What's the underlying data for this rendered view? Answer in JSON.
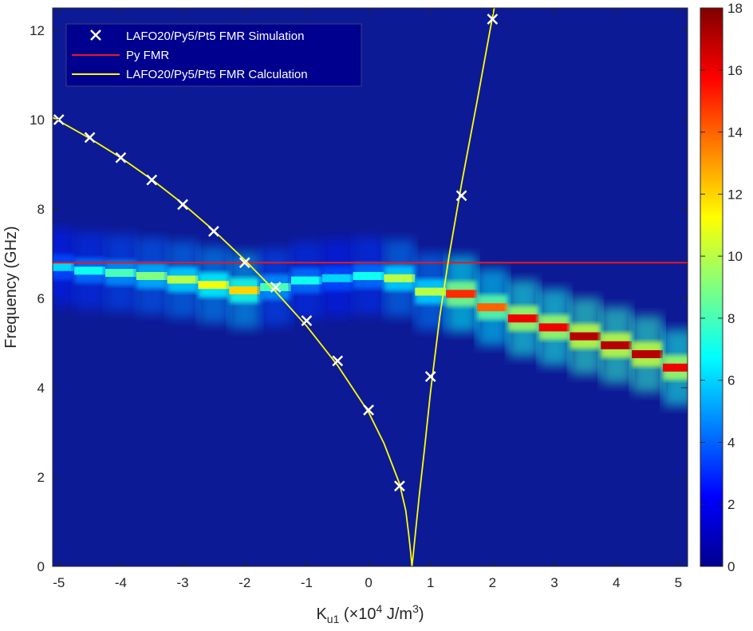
{
  "chart_data": {
    "type": "heatmap",
    "xlabel": {
      "base": "K",
      "sub": "u1",
      "pre": " (",
      "times": "×",
      "ten": "10",
      "exp": "4",
      "unit": " J/m",
      "unit_exp": "3",
      "post": ")"
    },
    "ylabel": "Frequency (GHz)",
    "xlim": [
      -5.1,
      5.15
    ],
    "ylim": [
      0,
      12.5
    ],
    "xticks": [
      -5,
      -4,
      -3,
      -2,
      -1,
      0,
      1,
      2,
      3,
      4,
      5
    ],
    "xtick_labels": [
      "-5",
      "-4",
      "-3",
      "-2",
      "-1",
      "0",
      "1",
      "2",
      "3",
      "4",
      "5"
    ],
    "yticks": [
      0,
      2,
      4,
      6,
      8,
      10,
      12
    ],
    "ytick_labels": [
      "0",
      "2",
      "4",
      "6",
      "8",
      "10",
      "12"
    ],
    "colorbar": {
      "range": [
        0,
        18
      ],
      "ticks": [
        0,
        2,
        4,
        6,
        8,
        10,
        12,
        14,
        16,
        18
      ],
      "tick_labels": [
        "0",
        "2",
        "4",
        "6",
        "8",
        "10",
        "12",
        "14",
        "16",
        "18"
      ],
      "colormap": "jet"
    },
    "heatmap_bands": [
      {
        "k": -5.0,
        "freq": 6.7,
        "intensity": 6
      },
      {
        "k": -4.5,
        "freq": 6.62,
        "intensity": 7
      },
      {
        "k": -4.0,
        "freq": 6.57,
        "intensity": 8
      },
      {
        "k": -3.5,
        "freq": 6.5,
        "intensity": 9
      },
      {
        "k": -3.0,
        "freq": 6.42,
        "intensity": 10
      },
      {
        "k": -2.5,
        "freq": 6.3,
        "intensity": 11
      },
      {
        "k": -2.0,
        "freq": 6.18,
        "intensity": 12
      },
      {
        "k": -1.5,
        "freq": 6.25,
        "intensity": 8
      },
      {
        "k": -1.0,
        "freq": 6.4,
        "intensity": 7
      },
      {
        "k": -0.5,
        "freq": 6.45,
        "intensity": 6
      },
      {
        "k": 0.0,
        "freq": 6.5,
        "intensity": 7
      },
      {
        "k": 0.5,
        "freq": 6.45,
        "intensity": 10
      },
      {
        "k": 1.0,
        "freq": 6.15,
        "intensity": 10
      },
      {
        "k": 1.5,
        "freq": 6.1,
        "intensity": 15
      },
      {
        "k": 2.0,
        "freq": 5.8,
        "intensity": 14
      },
      {
        "k": 2.5,
        "freq": 5.55,
        "intensity": 16
      },
      {
        "k": 3.0,
        "freq": 5.35,
        "intensity": 16
      },
      {
        "k": 3.5,
        "freq": 5.15,
        "intensity": 17
      },
      {
        "k": 4.0,
        "freq": 4.95,
        "intensity": 17
      },
      {
        "k": 4.5,
        "freq": 4.75,
        "intensity": 17
      },
      {
        "k": 5.0,
        "freq": 4.45,
        "intensity": 16
      }
    ],
    "series": [
      {
        "name": "LAFO20/Py5/Pt5 FMR Simulation",
        "marker": "x",
        "color": "#ffffff",
        "points": [
          {
            "x": -5.0,
            "y": 10.0
          },
          {
            "x": -4.5,
            "y": 9.6
          },
          {
            "x": -4.0,
            "y": 9.15
          },
          {
            "x": -3.5,
            "y": 8.65
          },
          {
            "x": -3.0,
            "y": 8.1
          },
          {
            "x": -2.5,
            "y": 7.5
          },
          {
            "x": -2.0,
            "y": 6.8
          },
          {
            "x": -1.5,
            "y": 6.25
          },
          {
            "x": -1.0,
            "y": 5.5
          },
          {
            "x": -0.5,
            "y": 4.6
          },
          {
            "x": 0.0,
            "y": 3.5
          },
          {
            "x": 0.5,
            "y": 1.8
          },
          {
            "x": 1.0,
            "y": 4.25
          },
          {
            "x": 1.5,
            "y": 8.3
          },
          {
            "x": 2.0,
            "y": 12.25
          }
        ]
      },
      {
        "name": "Py FMR",
        "line": true,
        "color": "#e8191c",
        "points": [
          {
            "x": -5.1,
            "y": 6.8
          },
          {
            "x": 5.15,
            "y": 6.8
          }
        ]
      },
      {
        "name": "LAFO20/Py5/Pt5 FMR Calculation",
        "line": true,
        "color": "#ffff00",
        "points": [
          {
            "x": -5.1,
            "y": 10.05
          },
          {
            "x": -4.5,
            "y": 9.58
          },
          {
            "x": -4.0,
            "y": 9.15
          },
          {
            "x": -3.5,
            "y": 8.66
          },
          {
            "x": -3.0,
            "y": 8.12
          },
          {
            "x": -2.5,
            "y": 7.52
          },
          {
            "x": -2.0,
            "y": 6.86
          },
          {
            "x": -1.5,
            "y": 6.15
          },
          {
            "x": -1.0,
            "y": 5.38
          },
          {
            "x": -0.5,
            "y": 4.5
          },
          {
            "x": 0.0,
            "y": 3.45
          },
          {
            "x": 0.25,
            "y": 2.75
          },
          {
            "x": 0.5,
            "y": 1.85
          },
          {
            "x": 0.6,
            "y": 1.25
          },
          {
            "x": 0.65,
            "y": 0.7
          },
          {
            "x": 0.68,
            "y": 0.3
          },
          {
            "x": 0.7,
            "y": 0.0
          },
          {
            "x": 0.72,
            "y": 0.25
          },
          {
            "x": 0.76,
            "y": 0.8
          },
          {
            "x": 0.82,
            "y": 1.6
          },
          {
            "x": 0.9,
            "y": 2.6
          },
          {
            "x": 1.0,
            "y": 3.9
          },
          {
            "x": 1.15,
            "y": 5.6
          },
          {
            "x": 1.3,
            "y": 6.95
          },
          {
            "x": 1.5,
            "y": 8.55
          },
          {
            "x": 1.75,
            "y": 10.4
          },
          {
            "x": 2.0,
            "y": 12.3
          },
          {
            "x": 2.03,
            "y": 12.5
          }
        ]
      }
    ],
    "legend": {
      "position": "top-left"
    }
  }
}
